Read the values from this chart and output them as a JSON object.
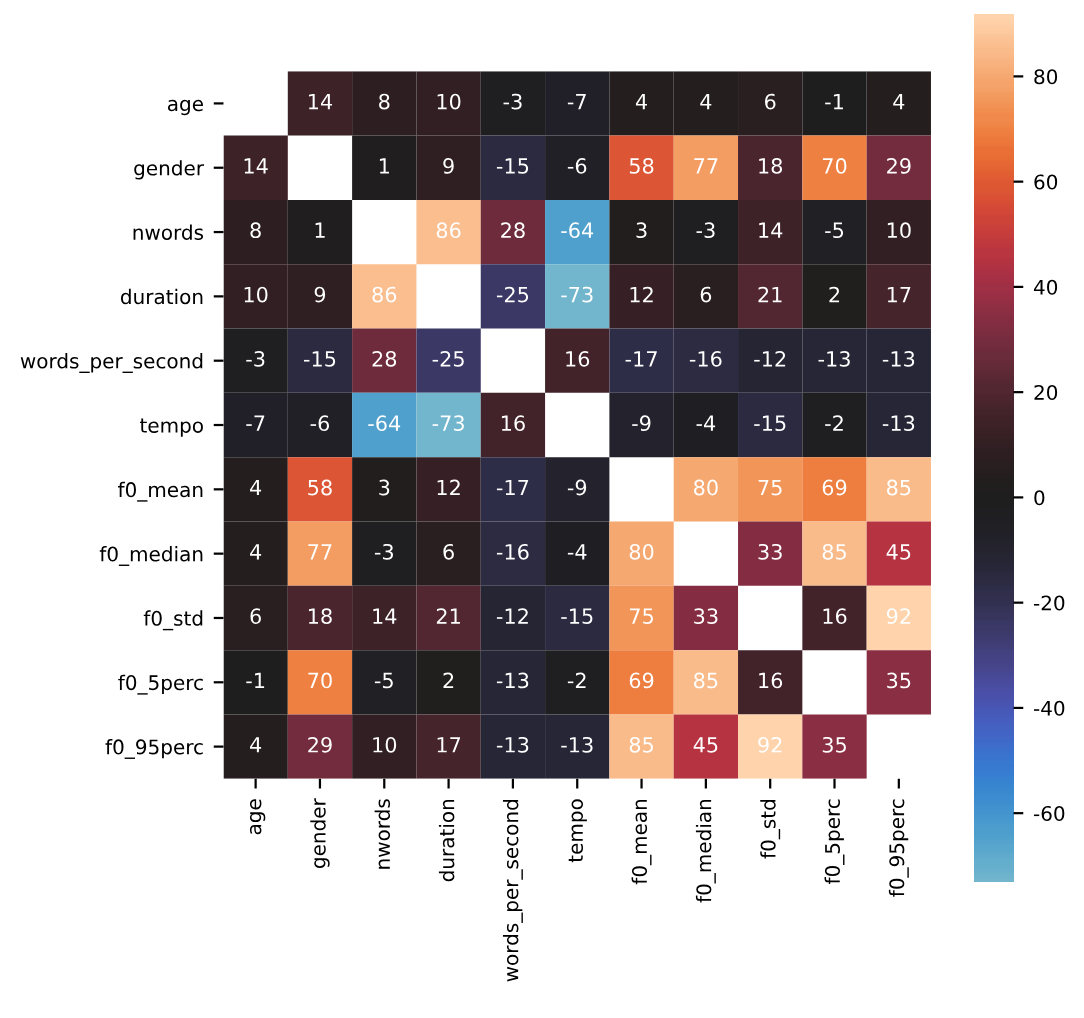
{
  "chart_data": {
    "type": "heatmap",
    "categories": [
      "age",
      "gender",
      "nwords",
      "duration",
      "words_per_second",
      "tempo",
      "f0_mean",
      "f0_median",
      "f0_std",
      "f0_5perc",
      "f0_95perc"
    ],
    "y_categories": [
      "age",
      "gender",
      "nwords",
      "duration",
      "words_per_second",
      "tempo",
      "f0_mean",
      "f0_median",
      "f0_std",
      "f0_5perc",
      "f0_95perc"
    ],
    "cells": [
      [
        null,
        14,
        8,
        10,
        -3,
        -7,
        4,
        4,
        6,
        -1,
        4
      ],
      [
        14,
        null,
        1,
        9,
        -15,
        -6,
        58,
        77,
        18,
        70,
        29
      ],
      [
        8,
        1,
        null,
        86,
        28,
        -64,
        3,
        -3,
        14,
        -5,
        10
      ],
      [
        10,
        9,
        86,
        null,
        -25,
        -73,
        12,
        6,
        21,
        2,
        17
      ],
      [
        -3,
        -15,
        28,
        -25,
        null,
        16,
        -17,
        -16,
        -12,
        -13,
        -13
      ],
      [
        -7,
        -6,
        -64,
        -73,
        16,
        null,
        -9,
        -4,
        -15,
        -2,
        -13
      ],
      [
        4,
        58,
        3,
        12,
        -17,
        -9,
        null,
        80,
        75,
        69,
        85
      ],
      [
        4,
        77,
        -3,
        6,
        -16,
        -4,
        80,
        null,
        33,
        85,
        45
      ],
      [
        6,
        18,
        14,
        21,
        -12,
        -15,
        75,
        33,
        null,
        16,
        92
      ],
      [
        -1,
        70,
        -5,
        2,
        -13,
        -2,
        69,
        85,
        16,
        null,
        35
      ],
      [
        4,
        29,
        10,
        17,
        -13,
        -13,
        85,
        45,
        92,
        35,
        null
      ]
    ],
    "clim": [
      -73,
      92
    ],
    "cticks": [
      -60,
      -40,
      -20,
      0,
      20,
      40,
      60,
      80
    ],
    "data_labels": true
  }
}
